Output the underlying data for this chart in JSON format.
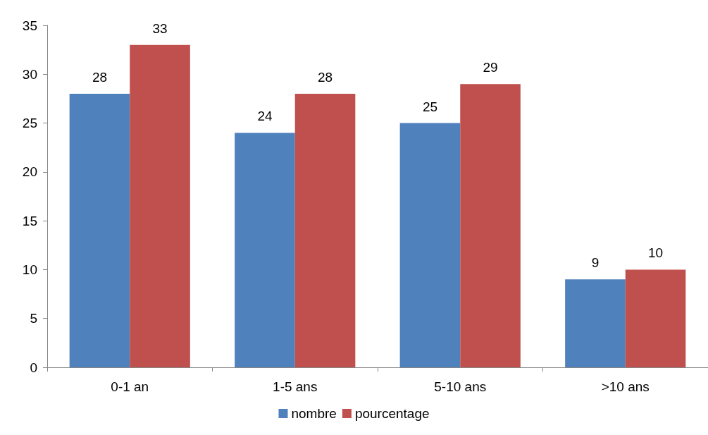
{
  "chart_data": {
    "type": "bar",
    "categories": [
      "0-1 an",
      "1-5 ans",
      "5-10 ans",
      ">10 ans"
    ],
    "series": [
      {
        "name": "nombre",
        "color": "#4f81bd",
        "values": [
          28,
          24,
          25,
          9
        ]
      },
      {
        "name": "pourcentage",
        "color": "#c0504d",
        "values": [
          33,
          28,
          29,
          10
        ]
      }
    ],
    "ylim": [
      0,
      35
    ],
    "yticks": [
      0,
      5,
      10,
      15,
      20,
      25,
      30,
      35
    ],
    "grid": false,
    "legend": "bottom",
    "data_labels": true
  }
}
